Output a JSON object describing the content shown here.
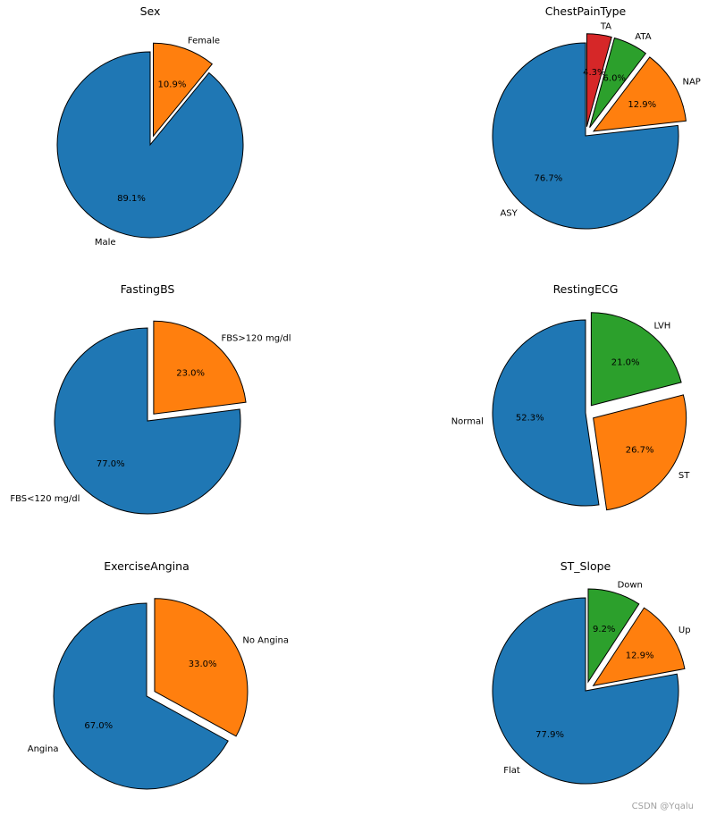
{
  "chart_data": [
    {
      "type": "pie",
      "title": "Sex",
      "slices": [
        {
          "label": "Male",
          "value": 89.1,
          "pct_label": "89.1%",
          "color": "#1f77b4",
          "explode": 0
        },
        {
          "label": "Female",
          "value": 10.9,
          "pct_label": "10.9%",
          "color": "#ff7f0e",
          "explode": 0.1
        }
      ]
    },
    {
      "type": "pie",
      "title": "ChestPainType",
      "slices": [
        {
          "label": "ASY",
          "value": 76.7,
          "pct_label": "76.7%",
          "color": "#1f77b4",
          "explode": 0
        },
        {
          "label": "NAP",
          "value": 12.9,
          "pct_label": "12.9%",
          "color": "#ff7f0e",
          "explode": 0.1
        },
        {
          "label": "ATA",
          "value": 6.0,
          "pct_label": "6.0%",
          "color": "#2ca02c",
          "explode": 0.1
        },
        {
          "label": "TA",
          "value": 4.3,
          "pct_label": "4.3%",
          "color": "#d62728",
          "explode": 0.1
        }
      ]
    },
    {
      "type": "pie",
      "title": "FastingBS",
      "slices": [
        {
          "label": "FBS<120 mg/dl",
          "value": 77.0,
          "pct_label": "77.0%",
          "color": "#1f77b4",
          "explode": 0
        },
        {
          "label": "FBS>120 mg/dl",
          "value": 23.0,
          "pct_label": "23.0%",
          "color": "#ff7f0e",
          "explode": 0.1
        }
      ]
    },
    {
      "type": "pie",
      "title": "RestingECG",
      "slices": [
        {
          "label": "Normal",
          "value": 52.3,
          "pct_label": "52.3%",
          "color": "#1f77b4",
          "explode": 0
        },
        {
          "label": "ST",
          "value": 26.7,
          "pct_label": "26.7%",
          "color": "#ff7f0e",
          "explode": 0.1
        },
        {
          "label": "LVH",
          "value": 21.0,
          "pct_label": "21.0%",
          "color": "#2ca02c",
          "explode": 0.1
        }
      ]
    },
    {
      "type": "pie",
      "title": "ExerciseAngina",
      "slices": [
        {
          "label": "Angina",
          "value": 67.0,
          "pct_label": "67.0%",
          "color": "#1f77b4",
          "explode": 0
        },
        {
          "label": "No Angina",
          "value": 33.0,
          "pct_label": "33.0%",
          "color": "#ff7f0e",
          "explode": 0.1
        }
      ]
    },
    {
      "type": "pie",
      "title": "ST_Slope",
      "slices": [
        {
          "label": "Flat",
          "value": 77.9,
          "pct_label": "77.9%",
          "color": "#1f77b4",
          "explode": 0
        },
        {
          "label": "Up",
          "value": 12.9,
          "pct_label": "12.9%",
          "color": "#ff7f0e",
          "explode": 0.1
        },
        {
          "label": "Down",
          "value": 9.2,
          "pct_label": "9.2%",
          "color": "#2ca02c",
          "explode": 0.1
        }
      ]
    }
  ],
  "watermark": "CSDN @Yqalu"
}
